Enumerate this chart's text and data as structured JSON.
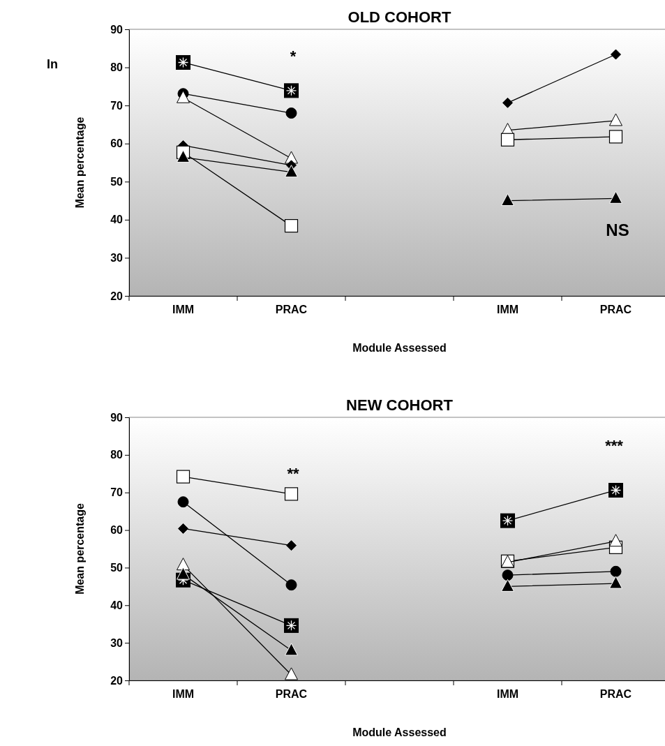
{
  "chart_data": [
    {
      "type": "line",
      "title": "OLD COHORT",
      "xlabel": "Module Assessed",
      "ylabel": "Mean percentage",
      "categories": [
        "IMM",
        "PRAC",
        null,
        "IMM",
        "PRAC"
      ],
      "ylim": [
        20,
        90
      ],
      "yticks": [
        20,
        30,
        40,
        50,
        60,
        70,
        80,
        90
      ],
      "annotations": [
        "In",
        "*",
        "NS"
      ],
      "series": [
        {
          "marker": "square",
          "color": "#000000",
          "values": [
            81.3,
            73.9,
            null,
            null,
            null
          ]
        },
        {
          "marker": "circle",
          "color": "#000000",
          "values": [
            73.1,
            68,
            null,
            null,
            null
          ]
        },
        {
          "marker": "triangle",
          "color": "#ffffff",
          "values": [
            72,
            56.1,
            null,
            63.5,
            66
          ]
        },
        {
          "marker": "diamond",
          "color": "#000000",
          "values": [
            59.5,
            54.3,
            null,
            70.7,
            83.4
          ]
        },
        {
          "marker": "square",
          "color": "#ffffff",
          "values": [
            57.7,
            38.4,
            null,
            61,
            61.8
          ]
        },
        {
          "marker": "triangle",
          "color": "#000000",
          "values": [
            56.4,
            52.5,
            null,
            45,
            45.6
          ]
        }
      ]
    },
    {
      "type": "line",
      "title": "NEW COHORT",
      "xlabel": "Module Assessed",
      "ylabel": "Mean percentage",
      "categories": [
        "IMM",
        "PRAC",
        null,
        "IMM",
        "PRAC"
      ],
      "ylim": [
        20,
        90
      ],
      "yticks": [
        20,
        30,
        40,
        50,
        60,
        70,
        80,
        90
      ],
      "annotations": [
        "**",
        "***"
      ],
      "series": [
        {
          "marker": "square",
          "color": "#ffffff",
          "values": [
            74.2,
            69.6,
            null,
            51.7,
            55.4
          ]
        },
        {
          "marker": "circle",
          "color": "#000000",
          "values": [
            67.5,
            45.4,
            null,
            48,
            49
          ]
        },
        {
          "marker": "diamond",
          "color": "#000000",
          "values": [
            60.4,
            55.9,
            null,
            null,
            null
          ]
        },
        {
          "marker": "triangle",
          "color": "#ffffff",
          "values": [
            50.7,
            21.5,
            null,
            51.4,
            57
          ]
        },
        {
          "marker": "square",
          "color": "#000000",
          "values": [
            46.7,
            34.6,
            null,
            62.5,
            70.6
          ]
        },
        {
          "marker": "triangle",
          "color": "#000000",
          "values": [
            48.2,
            28,
            null,
            45,
            45.8
          ]
        }
      ]
    }
  ]
}
